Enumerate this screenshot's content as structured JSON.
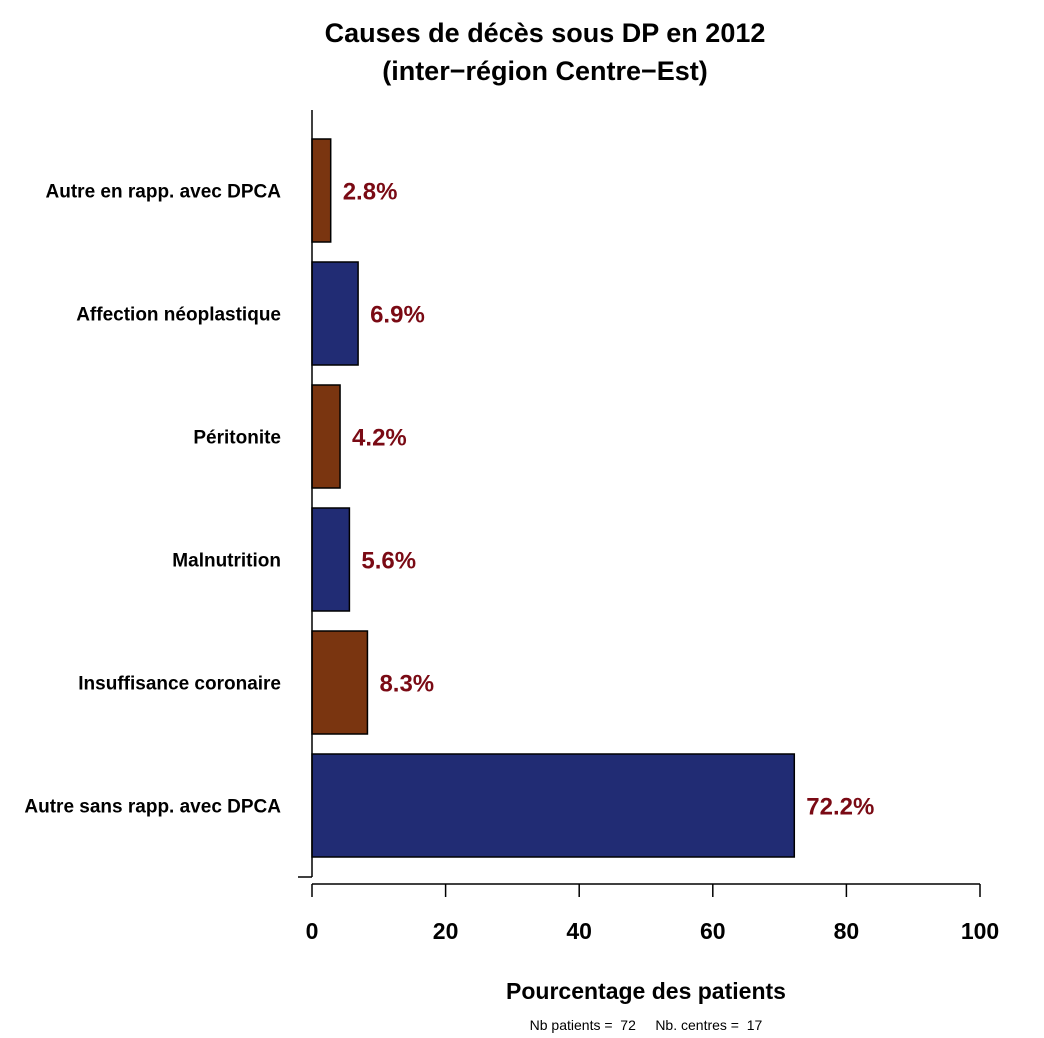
{
  "chart_data": {
    "type": "bar",
    "orientation": "horizontal",
    "title": "Causes de décès sous DP en 2012",
    "subtitle": "(inter−région Centre−Est)",
    "categories": [
      "Autre en rapp. avec DPCA",
      "Affection néoplastique",
      "Péritonite",
      "Malnutrition",
      "Insuffisance coronaire",
      "Autre sans rapp. avec DPCA"
    ],
    "values": [
      2.8,
      6.9,
      4.2,
      5.6,
      8.3,
      72.2
    ],
    "data_labels": [
      "2.8%",
      "6.9%",
      "4.2%",
      "5.6%",
      "8.3%",
      "72.2%"
    ],
    "bar_colors": [
      "#7a3510",
      "#212c74",
      "#7a3510",
      "#212c74",
      "#7a3510",
      "#212c74"
    ],
    "label_color": "#7a0a14",
    "xlabel": "Pourcentage des patients",
    "ylabel": "",
    "xlim": [
      0,
      100
    ],
    "xticks": [
      "0",
      "20",
      "40",
      "60",
      "80",
      "100"
    ],
    "xtick_values": [
      0,
      20,
      40,
      60,
      80,
      100
    ],
    "grid": false,
    "footnote": "Nb patients =  72     Nb. centres =  17"
  }
}
